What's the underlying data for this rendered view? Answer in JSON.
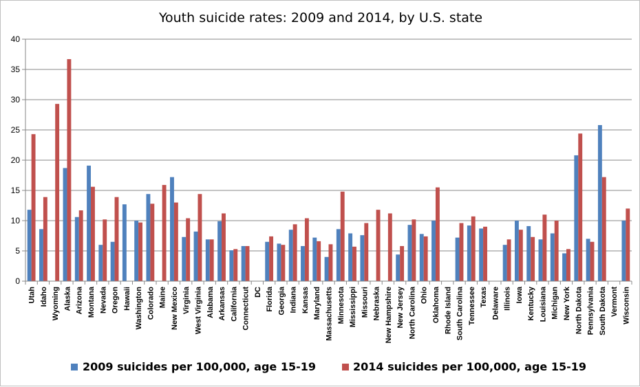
{
  "chart_data": {
    "type": "bar",
    "title": "Youth suicide rates: 2009 and 2014, by U.S. state",
    "xlabel": "",
    "ylabel": "",
    "ylim": [
      0,
      40
    ],
    "yticks": [
      0,
      5,
      10,
      15,
      20,
      25,
      30,
      35,
      40
    ],
    "grid": true,
    "legend_position": "bottom",
    "categories": [
      "Utah",
      "Idaho",
      "Wyoming",
      "Alaska",
      "Arizona",
      "Montana",
      "Nevada",
      "Oregon",
      "Hawaii",
      "Washington",
      "Colorado",
      "Maine",
      "New Mexico",
      "Virginia",
      "West Virginia",
      "Alabama",
      "Arkansas",
      "California",
      "Connecticut",
      "DC",
      "Florida",
      "Georgia",
      "Indiana",
      "Kansas",
      "Maryland",
      "Massachusetts",
      "Minnesota",
      "Mississippi",
      "Missouri",
      "Nebraska",
      "New Hampshire",
      "New Jersey",
      "North Carolina",
      "Ohio",
      "Oklahoma",
      "Rhode Island",
      "South Carolina",
      "Tennessee",
      "Texas",
      "Delaware",
      "Illinois",
      "Iowa",
      "Kentucky",
      "Louisiana",
      "Michigan",
      "New York",
      "North Dakota",
      "Pennsylvania",
      "South Dakota",
      "Vermont",
      "Wisconsin"
    ],
    "series": [
      {
        "name": "2009 suicides per 100,000, age 15-19",
        "color": "#4f81bd",
        "values": [
          11.8,
          8.6,
          0,
          18.7,
          10.6,
          19.1,
          6,
          6.5,
          12.7,
          10,
          14.4,
          0,
          17.2,
          7.3,
          8.2,
          6.9,
          9.9,
          5.1,
          5.8,
          0,
          6.5,
          6.2,
          8.5,
          5.8,
          7.2,
          4,
          8.6,
          7.9,
          7.6,
          0,
          0,
          4.4,
          9.3,
          7.8,
          10,
          0,
          7.2,
          9.2,
          8.7,
          0,
          6,
          10,
          9.1,
          6.9,
          7.9,
          4.6,
          20.8,
          7,
          25.8,
          0,
          10
        ]
      },
      {
        "name": "2014 suicides per 100,000, age 15-19",
        "color": "#c0504d",
        "values": [
          24.3,
          13.9,
          29.3,
          36.7,
          11.7,
          15.6,
          10.2,
          13.9,
          0,
          9.7,
          12.8,
          15.9,
          13,
          10.4,
          14.4,
          6.9,
          11.2,
          5.3,
          5.8,
          0,
          7.4,
          6,
          9.4,
          10.4,
          6.6,
          6.1,
          14.8,
          5.7,
          9.6,
          11.8,
          11.2,
          5.8,
          10.2,
          7.4,
          15.5,
          0,
          9.6,
          10.7,
          9,
          0,
          6.9,
          8.5,
          7.3,
          11,
          10,
          5.3,
          24.4,
          6.5,
          17.2,
          0,
          12
        ]
      }
    ]
  }
}
